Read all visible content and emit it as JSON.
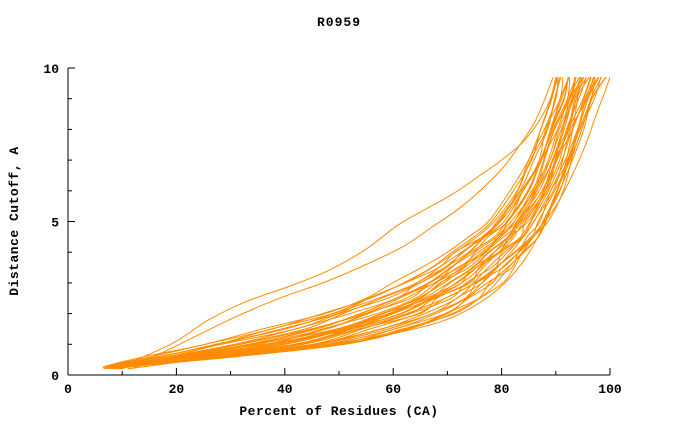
{
  "figure": {
    "background": "#ffffff"
  },
  "chart_data": {
    "type": "line",
    "title": "R0959",
    "xlabel": "Percent of Residues (CA)",
    "ylabel": "Distance Cutoff, A",
    "xlim": [
      0,
      100
    ],
    "ylim": [
      0,
      10
    ],
    "x_ticks": [
      0,
      20,
      40,
      60,
      80,
      100
    ],
    "y_ticks": [
      0,
      5,
      10
    ],
    "x_minor_ticks": [
      10,
      30,
      50,
      70,
      90
    ],
    "y_minor_ticks": [
      1,
      2,
      3,
      4,
      6,
      7,
      8,
      9
    ],
    "grid": false,
    "legend": "none",
    "line_color": "#ff8c00",
    "axis_color": "#000000",
    "description": "Bundle of ~40 cumulative model-accuracy curves: distance cutoff (A) vs percent of CA residues under that cutoff. Curves start near x=8-12 at y=0.2, rise slowly through the bottom-left wedge, then climb steeply between x=80 and x=100 toward y=9.7.",
    "bundle": {
      "y_levels": [
        0.2,
        0.3,
        0.6,
        1.0,
        1.5,
        2.0,
        2.5,
        3.0,
        3.5,
        4.0,
        4.5,
        5.0,
        6.0,
        7.0,
        8.0,
        9.0,
        9.7
      ],
      "base_x": [
        8.5,
        10,
        23,
        38,
        50,
        59,
        65,
        70,
        74,
        77.5,
        80.5,
        83,
        86.5,
        89,
        91,
        93,
        94.5
      ],
      "half_spread_x": [
        1.5,
        3,
        8,
        13,
        13,
        12,
        11,
        9.5,
        8,
        7,
        6,
        5,
        4.5,
        4,
        4,
        4,
        4.5
      ],
      "curve_factors": [
        -1.0,
        -0.93,
        -0.86,
        -0.79,
        -0.72,
        -0.65,
        -0.58,
        -0.51,
        -0.45,
        -0.39,
        -0.33,
        -0.27,
        -0.22,
        -0.17,
        -0.12,
        -0.07,
        -0.02,
        0.03,
        0.08,
        0.13,
        0.18,
        0.23,
        0.28,
        0.33,
        0.38,
        0.44,
        0.5,
        0.56,
        0.62,
        0.68,
        0.75,
        0.81,
        0.87,
        0.92,
        0.96,
        1.0
      ]
    },
    "outlier_series": [
      {
        "name": "high-outlier-1",
        "points": [
          [
            9,
            0.25
          ],
          [
            14,
            0.6
          ],
          [
            20,
            1.1
          ],
          [
            26,
            1.8
          ],
          [
            33,
            2.4
          ],
          [
            41,
            2.9
          ],
          [
            48,
            3.4
          ],
          [
            55,
            4.1
          ],
          [
            61,
            4.9
          ],
          [
            66,
            5.4
          ],
          [
            71,
            5.9
          ],
          [
            76,
            6.5
          ],
          [
            80,
            7.0
          ],
          [
            84,
            7.6
          ],
          [
            87,
            8.3
          ],
          [
            89,
            9.0
          ],
          [
            90,
            9.7
          ]
        ]
      },
      {
        "name": "high-outlier-2",
        "points": [
          [
            10,
            0.25
          ],
          [
            17,
            0.7
          ],
          [
            24,
            1.3
          ],
          [
            31,
            1.9
          ],
          [
            39,
            2.5
          ],
          [
            47,
            3.0
          ],
          [
            55,
            3.6
          ],
          [
            62,
            4.2
          ],
          [
            67,
            4.8
          ],
          [
            72,
            5.4
          ],
          [
            76,
            6.0
          ],
          [
            80,
            6.7
          ],
          [
            83,
            7.4
          ],
          [
            86,
            8.2
          ],
          [
            88,
            9.0
          ],
          [
            89.5,
            9.7
          ]
        ]
      },
      {
        "name": "right-outlier",
        "points": [
          [
            12,
            0.25
          ],
          [
            28,
            0.8
          ],
          [
            44,
            1.2
          ],
          [
            57,
            1.7
          ],
          [
            67,
            2.3
          ],
          [
            75,
            3.0
          ],
          [
            81,
            3.8
          ],
          [
            86,
            4.6
          ],
          [
            90,
            5.5
          ],
          [
            93,
            6.5
          ],
          [
            95.5,
            7.5
          ],
          [
            97.5,
            8.5
          ],
          [
            99,
            9.2
          ],
          [
            100,
            9.7
          ]
        ]
      },
      {
        "name": "low-right-outlier",
        "points": [
          [
            11,
            0.2
          ],
          [
            24,
            0.5
          ],
          [
            38,
            0.8
          ],
          [
            50,
            1.05
          ],
          [
            60,
            1.35
          ],
          [
            69,
            1.75
          ],
          [
            75,
            2.25
          ],
          [
            80,
            2.9
          ],
          [
            84,
            3.7
          ],
          [
            87,
            4.6
          ],
          [
            89.5,
            5.6
          ],
          [
            91.5,
            6.7
          ],
          [
            93,
            7.9
          ],
          [
            94,
            9.0
          ],
          [
            94.5,
            9.7
          ]
        ]
      }
    ]
  }
}
